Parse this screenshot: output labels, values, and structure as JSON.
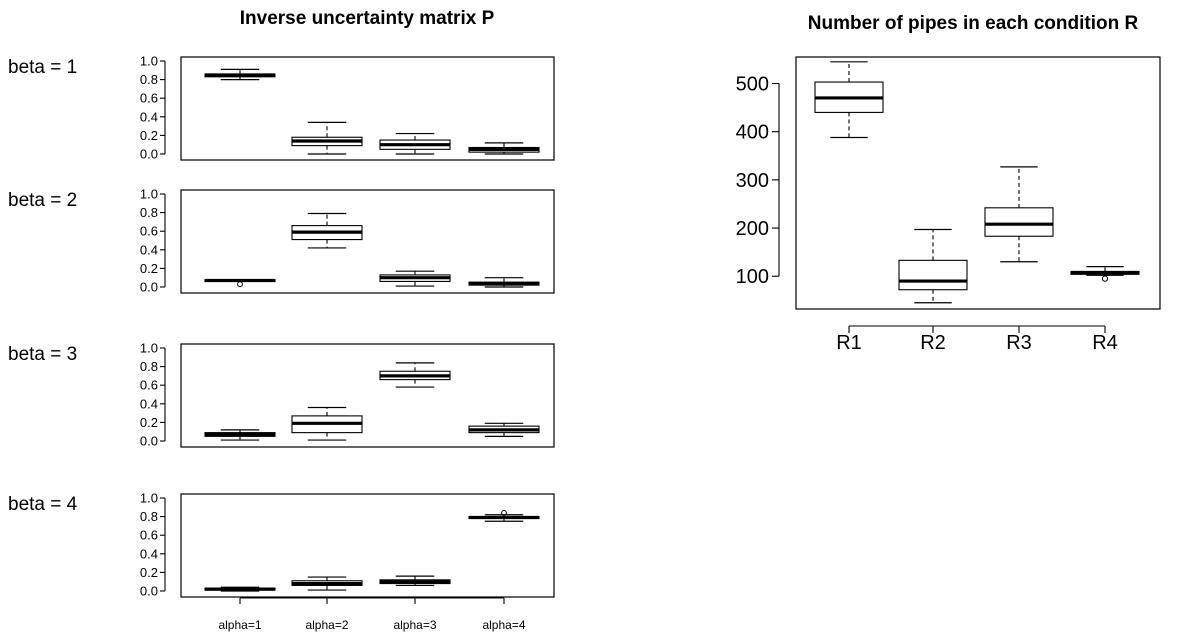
{
  "chart_data": [
    {
      "type": "boxplot",
      "title": "Inverse uncertainty matrix P",
      "categories": [
        "alpha=1",
        "alpha=2",
        "alpha=3",
        "alpha=4"
      ],
      "yticks": [
        "0.0",
        "0.2",
        "0.4",
        "0.6",
        "0.8",
        "1.0"
      ],
      "ylim": [
        0,
        1
      ],
      "panels": [
        {
          "label": "beta = 1",
          "boxes": [
            {
              "whisker_low": 0.8,
              "q1": 0.83,
              "median": 0.85,
              "q3": 0.86,
              "whisker_high": 0.91,
              "outliers": []
            },
            {
              "whisker_low": 0.0,
              "q1": 0.09,
              "median": 0.14,
              "q3": 0.18,
              "whisker_high": 0.34,
              "outliers": []
            },
            {
              "whisker_low": 0.0,
              "q1": 0.05,
              "median": 0.1,
              "q3": 0.15,
              "whisker_high": 0.22,
              "outliers": []
            },
            {
              "whisker_low": 0.0,
              "q1": 0.02,
              "median": 0.05,
              "q3": 0.07,
              "whisker_high": 0.12,
              "outliers": []
            }
          ]
        },
        {
          "label": "beta = 2",
          "boxes": [
            {
              "whisker_low": 0.06,
              "q1": 0.06,
              "median": 0.07,
              "q3": 0.08,
              "whisker_high": 0.08,
              "outliers": [
                0.03
              ]
            },
            {
              "whisker_low": 0.42,
              "q1": 0.51,
              "median": 0.59,
              "q3": 0.66,
              "whisker_high": 0.79,
              "outliers": []
            },
            {
              "whisker_low": 0.01,
              "q1": 0.06,
              "median": 0.1,
              "q3": 0.13,
              "whisker_high": 0.17,
              "outliers": []
            },
            {
              "whisker_low": 0.0,
              "q1": 0.02,
              "median": 0.04,
              "q3": 0.05,
              "whisker_high": 0.1,
              "outliers": []
            }
          ]
        },
        {
          "label": "beta = 3",
          "boxes": [
            {
              "whisker_low": 0.01,
              "q1": 0.05,
              "median": 0.07,
              "q3": 0.09,
              "whisker_high": 0.12,
              "outliers": []
            },
            {
              "whisker_low": 0.01,
              "q1": 0.09,
              "median": 0.19,
              "q3": 0.27,
              "whisker_high": 0.36,
              "outliers": []
            },
            {
              "whisker_low": 0.58,
              "q1": 0.66,
              "median": 0.7,
              "q3": 0.75,
              "whisker_high": 0.84,
              "outliers": []
            },
            {
              "whisker_low": 0.05,
              "q1": 0.09,
              "median": 0.12,
              "q3": 0.16,
              "whisker_high": 0.19,
              "outliers": []
            }
          ]
        },
        {
          "label": "beta = 4",
          "boxes": [
            {
              "whisker_low": 0.0,
              "q1": 0.01,
              "median": 0.02,
              "q3": 0.03,
              "whisker_high": 0.04,
              "outliers": []
            },
            {
              "whisker_low": 0.01,
              "q1": 0.06,
              "median": 0.08,
              "q3": 0.11,
              "whisker_high": 0.15,
              "outliers": []
            },
            {
              "whisker_low": 0.06,
              "q1": 0.08,
              "median": 0.1,
              "q3": 0.12,
              "whisker_high": 0.16,
              "outliers": []
            },
            {
              "whisker_low": 0.75,
              "q1": 0.78,
              "median": 0.79,
              "q3": 0.8,
              "whisker_high": 0.82,
              "outliers": [
                0.84
              ]
            }
          ]
        }
      ]
    },
    {
      "type": "boxplot",
      "title": "Number of pipes in each condition R",
      "categories": [
        "R1",
        "R2",
        "R3",
        "R4"
      ],
      "yticks": [
        "100",
        "200",
        "300",
        "400",
        "500"
      ],
      "ylim": [
        32,
        555
      ],
      "boxes": [
        {
          "whisker_low": 388,
          "q1": 440,
          "median": 470,
          "q3": 503,
          "whisker_high": 545,
          "outliers": []
        },
        {
          "whisker_low": 45,
          "q1": 72,
          "median": 90,
          "q3": 133,
          "whisker_high": 197,
          "outliers": []
        },
        {
          "whisker_low": 130,
          "q1": 183,
          "median": 208,
          "q3": 242,
          "whisker_high": 327,
          "outliers": []
        },
        {
          "whisker_low": 102,
          "q1": 104,
          "median": 107,
          "q3": 110,
          "whisker_high": 120,
          "outliers": [
            95
          ]
        }
      ]
    }
  ]
}
